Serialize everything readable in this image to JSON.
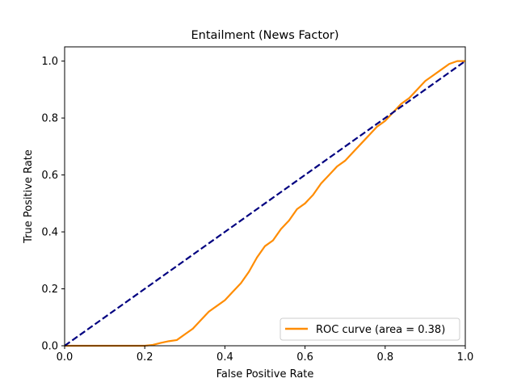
{
  "chart_data": {
    "type": "line",
    "title": "Entailment (News Factor)",
    "xlabel": "False Positive Rate",
    "ylabel": "True Positive Rate",
    "xlim": [
      0.0,
      1.0
    ],
    "ylim": [
      0.0,
      1.05
    ],
    "x_ticks": [
      "0.0",
      "0.2",
      "0.4",
      "0.6",
      "0.8",
      "1.0"
    ],
    "y_ticks": [
      "0.0",
      "0.2",
      "0.4",
      "0.6",
      "0.8",
      "1.0"
    ],
    "x_tick_values": [
      0.0,
      0.2,
      0.4,
      0.6,
      0.8,
      1.0
    ],
    "y_tick_values": [
      0.0,
      0.2,
      0.4,
      0.6,
      0.8,
      1.0
    ],
    "grid": false,
    "legend_position": "lower-right",
    "series": [
      {
        "name": "ROC curve (area = 0.38)",
        "color": "#ff8c00",
        "style": "solid",
        "x": [
          0.0,
          0.1,
          0.2,
          0.22,
          0.24,
          0.26,
          0.28,
          0.3,
          0.32,
          0.34,
          0.36,
          0.38,
          0.4,
          0.42,
          0.44,
          0.46,
          0.48,
          0.5,
          0.52,
          0.54,
          0.56,
          0.58,
          0.6,
          0.62,
          0.64,
          0.66,
          0.68,
          0.7,
          0.72,
          0.74,
          0.76,
          0.78,
          0.8,
          0.82,
          0.84,
          0.86,
          0.88,
          0.9,
          0.92,
          0.94,
          0.96,
          0.98,
          1.0
        ],
        "y": [
          0.0,
          0.0,
          0.0,
          0.003,
          0.01,
          0.016,
          0.02,
          0.04,
          0.06,
          0.09,
          0.12,
          0.14,
          0.16,
          0.19,
          0.22,
          0.26,
          0.31,
          0.35,
          0.37,
          0.41,
          0.44,
          0.48,
          0.5,
          0.53,
          0.57,
          0.6,
          0.63,
          0.65,
          0.68,
          0.71,
          0.74,
          0.77,
          0.79,
          0.82,
          0.85,
          0.87,
          0.9,
          0.93,
          0.95,
          0.97,
          0.99,
          1.0,
          1.0
        ]
      },
      {
        "name": "",
        "color": "#000080",
        "style": "dashed",
        "x": [
          0.0,
          1.0
        ],
        "y": [
          0.0,
          1.0
        ]
      }
    ]
  }
}
